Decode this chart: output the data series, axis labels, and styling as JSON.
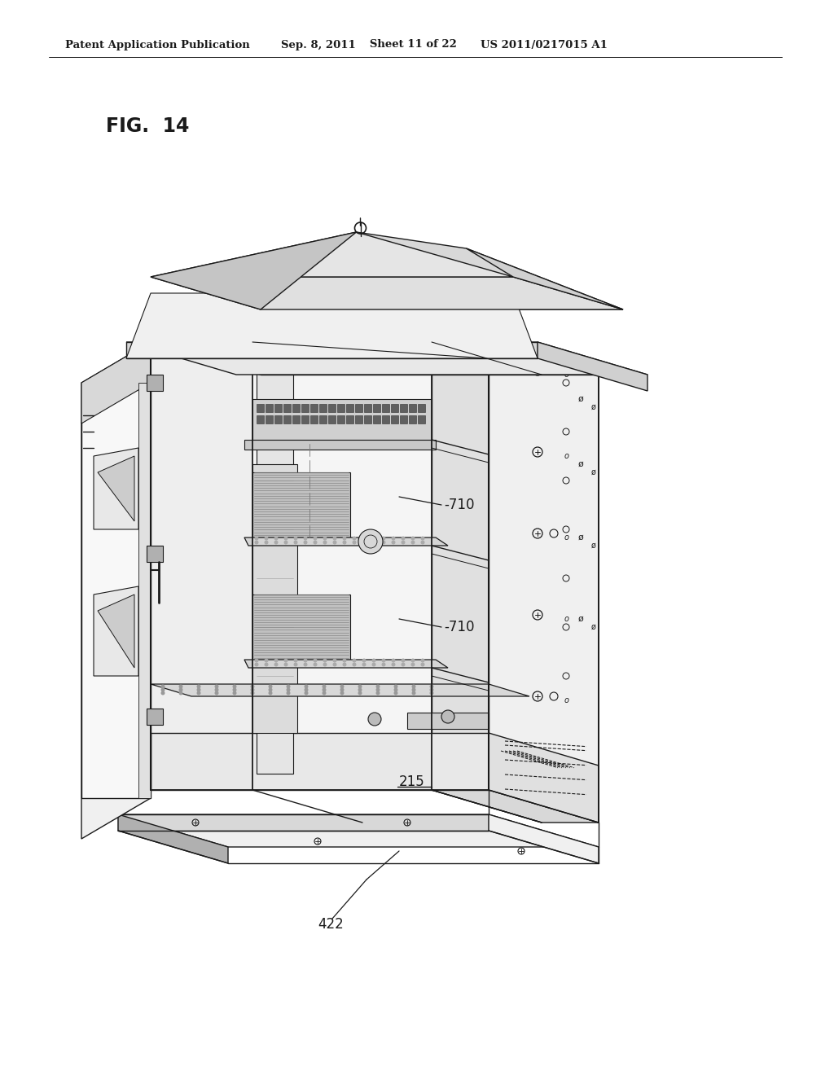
{
  "background_color": "#ffffff",
  "header_text": "Patent Application Publication",
  "header_date": "Sep. 8, 2011",
  "header_sheet": "Sheet 11 of 22",
  "header_patent": "US 2011/0217015 A1",
  "fig_label": "FIG.  14",
  "label_710_1": "-710",
  "label_710_2": "-710",
  "label_215": "215",
  "label_422": "422",
  "lc": "#1a1a1a",
  "lw": 1.0,
  "white": "#ffffff",
  "gray_light": "#f0f0f0",
  "gray_mid": "#d8d8d8",
  "gray_dark": "#b0b0b0",
  "gray_darker": "#888888",
  "gray_roof": "#c8c8c8",
  "gray_side": "#e0e0e0"
}
